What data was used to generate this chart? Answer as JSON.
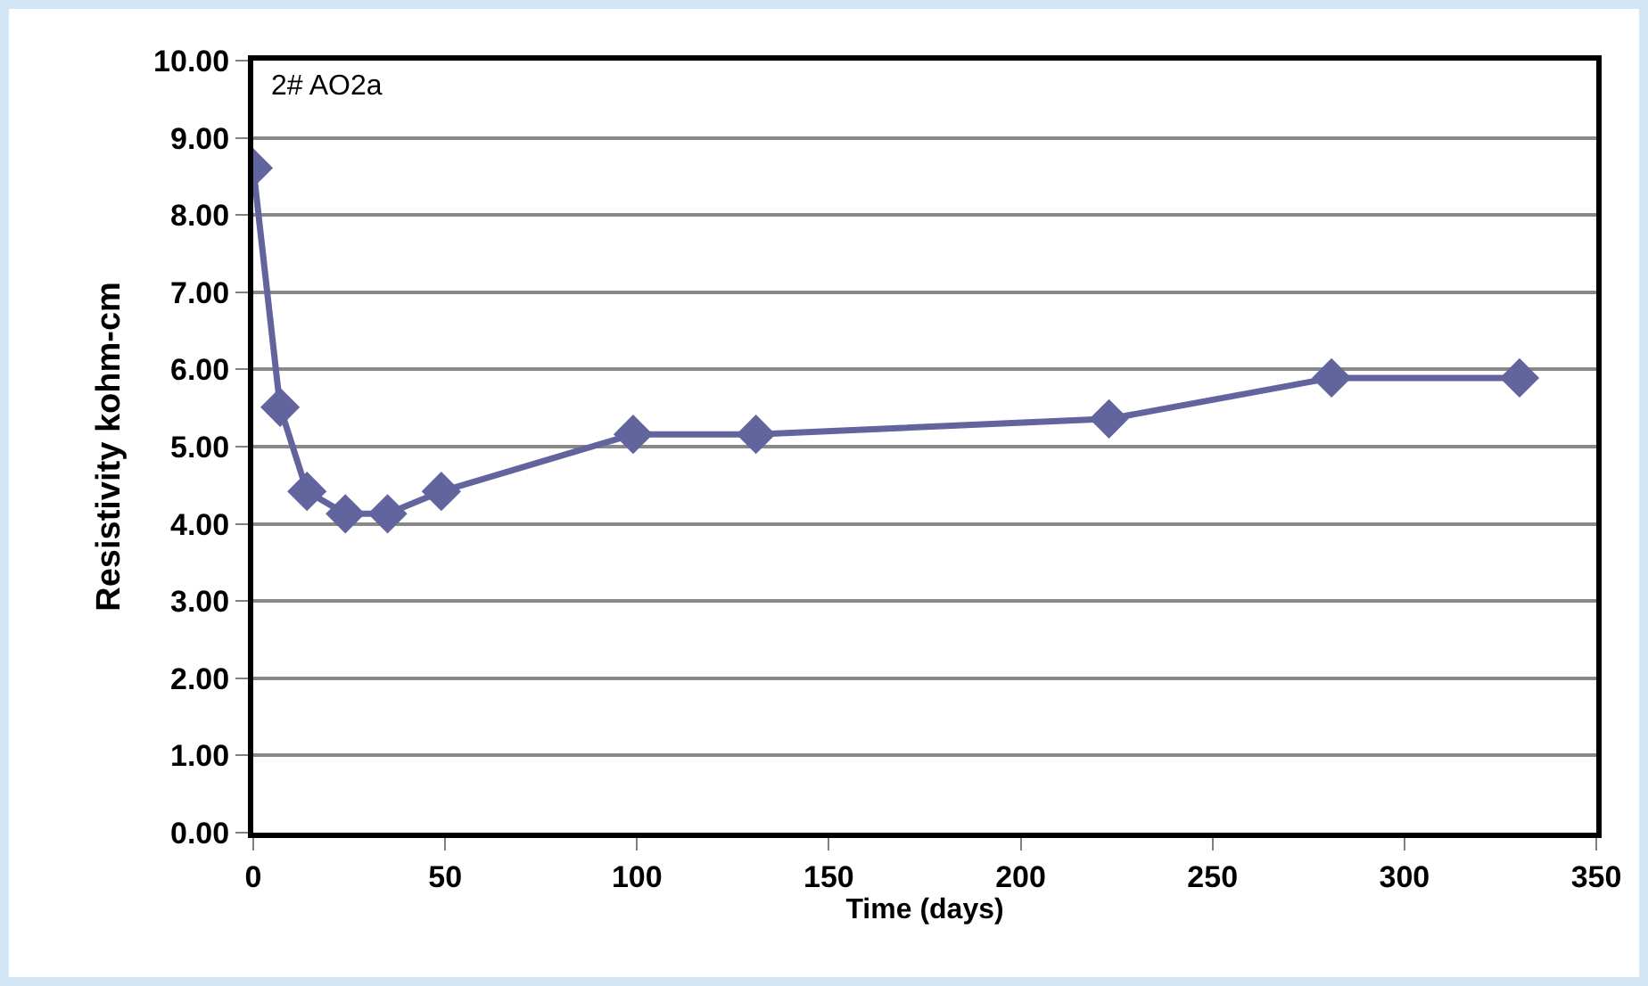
{
  "chart_data": {
    "type": "line",
    "xlabel": "Time (days)",
    "ylabel": "Resistivity kohm-cm",
    "annotations": [
      "2# AO2a"
    ],
    "x": [
      0,
      7,
      14,
      24,
      35,
      49,
      99,
      131,
      223,
      281,
      330
    ],
    "series": [
      {
        "color": "#62649e",
        "values": [
          8.61,
          5.51,
          4.42,
          4.13,
          4.13,
          4.42,
          5.16,
          5.16,
          5.36,
          5.89,
          5.89
        ]
      }
    ],
    "xlim": [
      0,
      350
    ],
    "xticks": [
      0,
      50,
      100,
      150,
      200,
      250,
      300,
      350
    ],
    "ylim": [
      0,
      10
    ],
    "yticks": [
      {
        "value": 0,
        "label": "0.00"
      },
      {
        "value": 1,
        "label": "1.00"
      },
      {
        "value": 2,
        "label": "2.00"
      },
      {
        "value": 3,
        "label": "3.00"
      },
      {
        "value": 4,
        "label": "4.00"
      },
      {
        "value": 5,
        "label": "5.00"
      },
      {
        "value": 6,
        "label": "6.00"
      },
      {
        "value": 7,
        "label": "7.00"
      },
      {
        "value": 8,
        "label": "8.00"
      },
      {
        "value": 9,
        "label": "9.00"
      },
      {
        "value": 10,
        "label": "10.00"
      }
    ],
    "grid": "y",
    "marker": "diamond",
    "line_style": "solid"
  }
}
